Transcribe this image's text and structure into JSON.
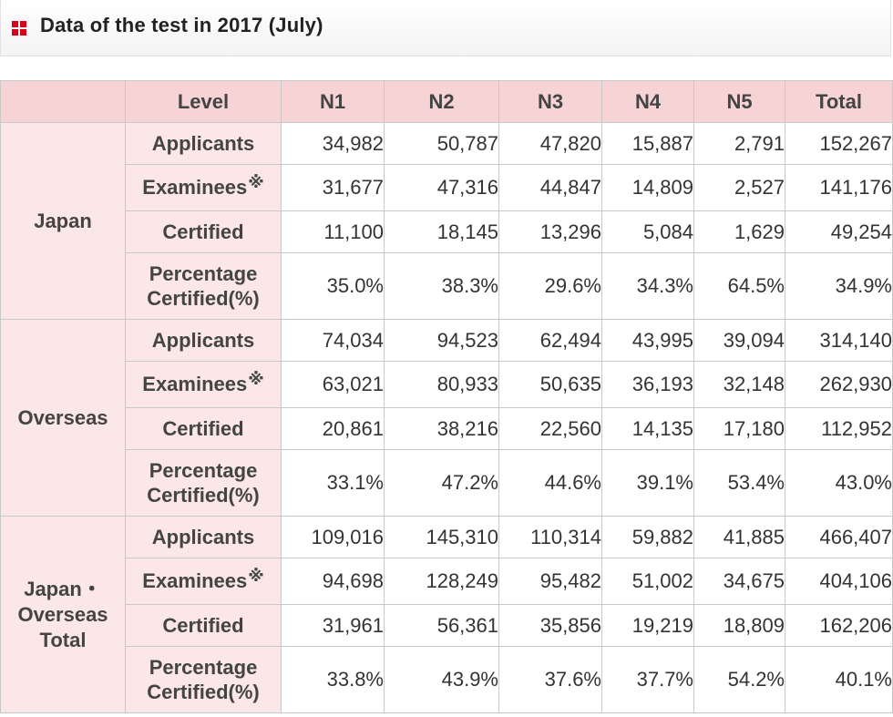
{
  "title": "Data of the test in 2017 (July)",
  "icon": "red-grid-square-icon",
  "colors": {
    "accent": "#d9001b",
    "header_bg": "#f6d3d5",
    "label_bg": "#fbe7e8"
  },
  "table": {
    "headers": [
      "Level",
      "N1",
      "N2",
      "N3",
      "N4",
      "N5",
      "Total"
    ],
    "examinee_mark": "※",
    "sections": [
      {
        "region": "Japan",
        "rows": [
          {
            "label": "Applicants",
            "values": [
              "34,982",
              "50,787",
              "47,820",
              "15,887",
              "2,791",
              "152,267"
            ]
          },
          {
            "label": "Examinees",
            "values": [
              "31,677",
              "47,316",
              "44,847",
              "14,809",
              "2,527",
              "141,176"
            ]
          },
          {
            "label": "Certified",
            "values": [
              "11,100",
              "18,145",
              "13,296",
              "5,084",
              "1,629",
              "49,254"
            ]
          },
          {
            "label_line1": "Percentage",
            "label_line2": "Certified(%)",
            "values": [
              "35.0%",
              "38.3%",
              "29.6%",
              "34.3%",
              "64.5%",
              "34.9%"
            ]
          }
        ]
      },
      {
        "region": "Overseas",
        "rows": [
          {
            "label": "Applicants",
            "values": [
              "74,034",
              "94,523",
              "62,494",
              "43,995",
              "39,094",
              "314,140"
            ]
          },
          {
            "label": "Examinees",
            "values": [
              "63,021",
              "80,933",
              "50,635",
              "36,193",
              "32,148",
              "262,930"
            ]
          },
          {
            "label": "Certified",
            "values": [
              "20,861",
              "38,216",
              "22,560",
              "14,135",
              "17,180",
              "112,952"
            ]
          },
          {
            "label_line1": "Percentage",
            "label_line2": "Certified(%)",
            "values": [
              "33.1%",
              "47.2%",
              "44.6%",
              "39.1%",
              "53.4%",
              "43.0%"
            ]
          }
        ]
      },
      {
        "region_line1": "Japan・",
        "region_line2": "Overseas",
        "region_line3": "Total",
        "rows": [
          {
            "label": "Applicants",
            "values": [
              "109,016",
              "145,310",
              "110,314",
              "59,882",
              "41,885",
              "466,407"
            ]
          },
          {
            "label": "Examinees",
            "values": [
              "94,698",
              "128,249",
              "95,482",
              "51,002",
              "34,675",
              "404,106"
            ]
          },
          {
            "label": "Certified",
            "values": [
              "31,961",
              "56,361",
              "35,856",
              "19,219",
              "18,809",
              "162,206"
            ]
          },
          {
            "label_line1": "Percentage",
            "label_line2": "Certified(%)",
            "values": [
              "33.8%",
              "43.9%",
              "37.6%",
              "37.7%",
              "54.2%",
              "40.1%"
            ]
          }
        ]
      }
    ]
  }
}
